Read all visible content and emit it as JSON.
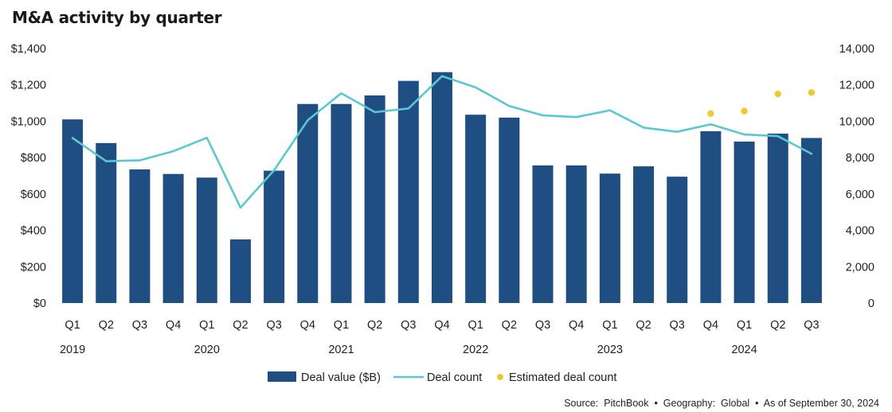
{
  "chart_data": {
    "type": "bar",
    "title": "M&A activity by quarter",
    "categories": [
      "Q1",
      "Q2",
      "Q3",
      "Q4",
      "Q1",
      "Q2",
      "Q3",
      "Q4",
      "Q1",
      "Q2",
      "Q3",
      "Q4",
      "Q1",
      "Q2",
      "Q3",
      "Q4",
      "Q1",
      "Q2",
      "Q3",
      "Q4",
      "Q1",
      "Q2",
      "Q3"
    ],
    "years": [
      {
        "label": "2019",
        "start_index": 0
      },
      {
        "label": "2020",
        "start_index": 4
      },
      {
        "label": "2021",
        "start_index": 8
      },
      {
        "label": "2022",
        "start_index": 12
      },
      {
        "label": "2023",
        "start_index": 16
      },
      {
        "label": "2024",
        "start_index": 20
      }
    ],
    "series": [
      {
        "name": "Deal value ($B)",
        "type": "bar",
        "axis": "left",
        "color": "#1f4e82",
        "values": [
          1010,
          880,
          735,
          710,
          690,
          350,
          728,
          1095,
          1095,
          1142,
          1222,
          1270,
          1036,
          1020,
          757,
          757,
          712,
          752,
          695,
          945,
          888,
          932,
          908
        ]
      },
      {
        "name": "Deal count",
        "type": "line",
        "axis": "right",
        "color": "#5ac8d0",
        "values": [
          9080,
          7800,
          7850,
          8350,
          9090,
          5250,
          7300,
          10050,
          11540,
          10500,
          10700,
          12480,
          11860,
          10840,
          10320,
          10230,
          10600,
          9650,
          9420,
          9830,
          9270,
          9180,
          8210
        ]
      },
      {
        "name": "Estimated deal count",
        "type": "scatter",
        "axis": "right",
        "color": "#f3c82e",
        "start_index": 19,
        "values": [
          10420,
          10560,
          11500,
          11580
        ]
      }
    ],
    "y_left": {
      "range": [
        0,
        1400
      ],
      "ticks": [
        0,
        200,
        400,
        600,
        800,
        1000,
        1200,
        1400
      ],
      "tick_labels": [
        "$0",
        "$200",
        "$400",
        "$600",
        "$800",
        "$1,000",
        "$1,200",
        "$1,400"
      ]
    },
    "y_right": {
      "range": [
        0,
        14000
      ],
      "ticks": [
        0,
        2000,
        4000,
        6000,
        8000,
        10000,
        12000,
        14000
      ],
      "tick_labels": [
        "0",
        "2,000",
        "4,000",
        "6,000",
        "8,000",
        "10,000",
        "12,000",
        "14,000"
      ]
    },
    "grid": false,
    "legend_position": "bottom-center"
  },
  "source": "Source:  PitchBook  •  Geography:  Global  •  As of September 30, 2024"
}
